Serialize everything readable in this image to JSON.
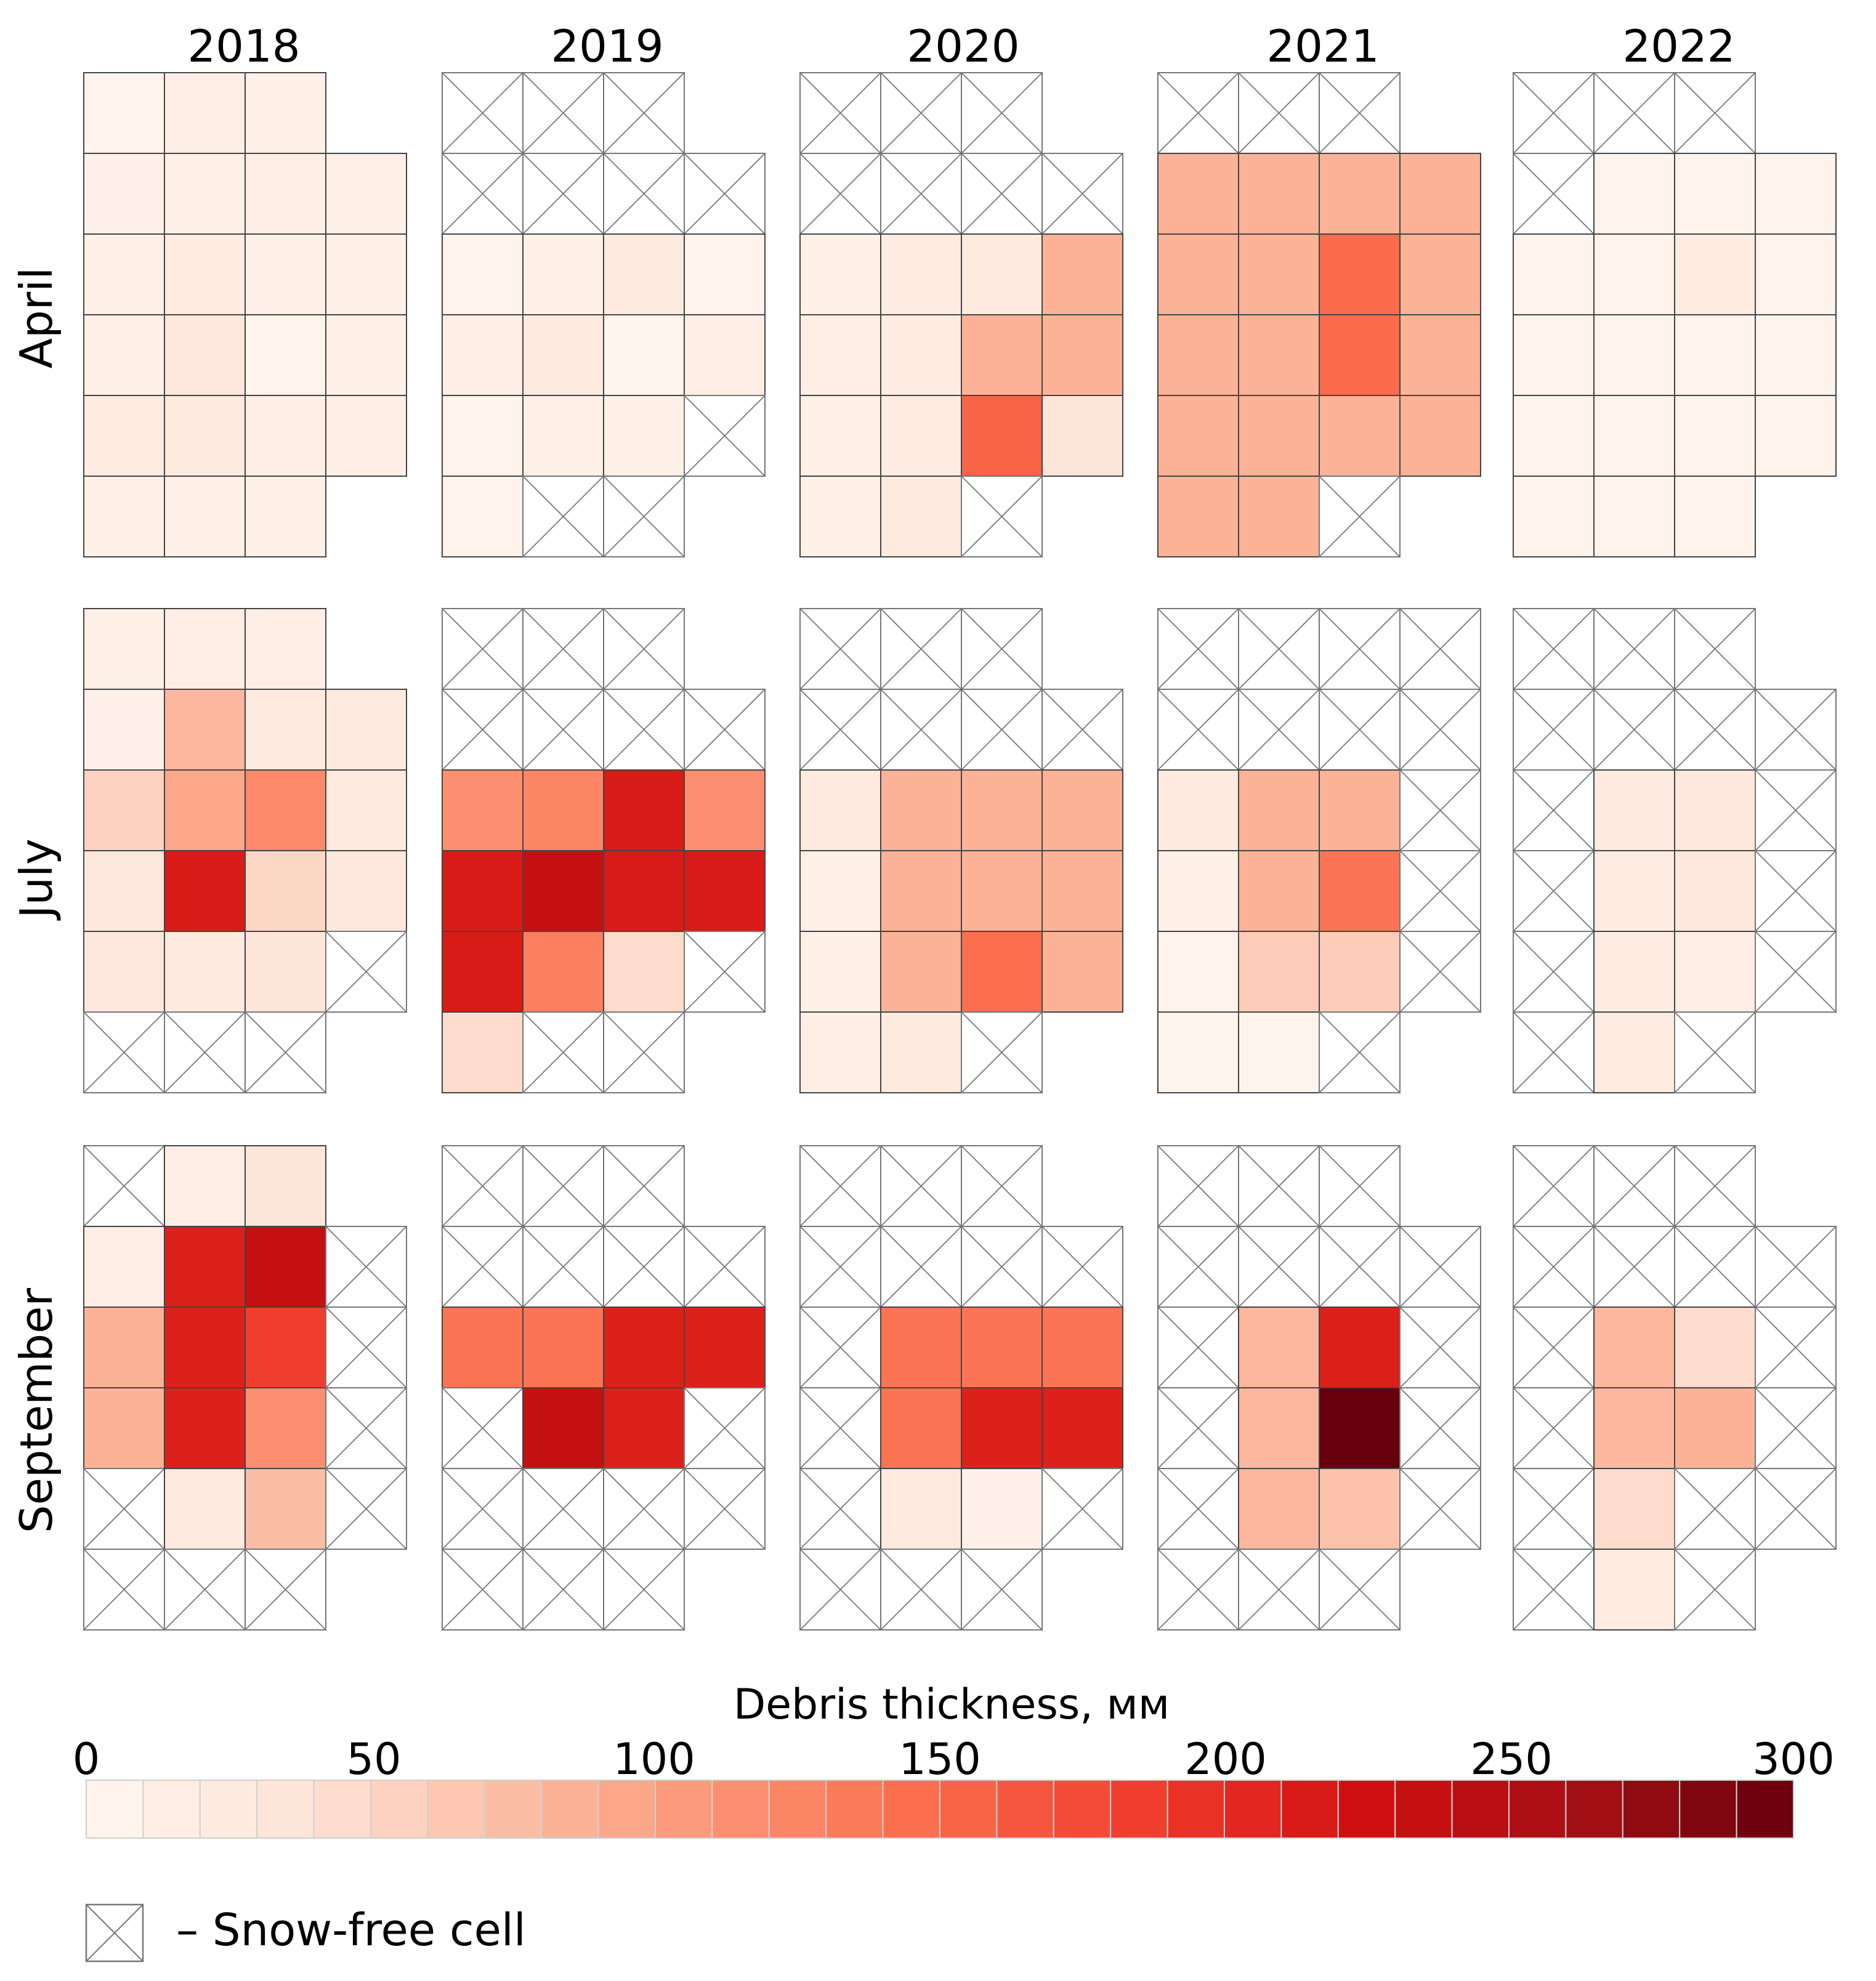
{
  "chart_data": {
    "type": "heatmap",
    "title": "",
    "years": [
      "2018",
      "2019",
      "2020",
      "2021",
      "2022"
    ],
    "months": [
      "April",
      "July",
      "September"
    ],
    "grid_size": {
      "rows": 6,
      "cols": 4
    },
    "cell_legend": {
      "null_meaning": "no cell",
      "-1_meaning": "Snow-free cell",
      "value_units": "mm"
    },
    "panels": {
      "April": {
        "2018": [
          [
            5,
            15,
            10,
            null
          ],
          [
            8,
            12,
            15,
            10
          ],
          [
            10,
            20,
            12,
            12
          ],
          [
            10,
            30,
            5,
            10
          ],
          [
            20,
            25,
            15,
            15
          ],
          [
            10,
            10,
            10,
            null
          ]
        ],
        "2019": [
          [
            -1,
            -1,
            -1,
            null
          ],
          [
            -1,
            -1,
            -1,
            -1
          ],
          [
            5,
            10,
            25,
            5
          ],
          [
            15,
            25,
            0,
            15
          ],
          [
            5,
            10,
            10,
            -1
          ],
          [
            5,
            -1,
            -1,
            null
          ]
        ],
        "2020": [
          [
            -1,
            -1,
            -1,
            null
          ],
          [
            -1,
            -1,
            -1,
            -1
          ],
          [
            10,
            20,
            25,
            85
          ],
          [
            15,
            20,
            85,
            85
          ],
          [
            10,
            20,
            155,
            35
          ],
          [
            10,
            25,
            -1,
            null
          ]
        ],
        "2021": [
          [
            -1,
            -1,
            -1,
            null
          ],
          [
            85,
            85,
            85,
            85
          ],
          [
            85,
            85,
            150,
            85
          ],
          [
            85,
            85,
            150,
            85
          ],
          [
            85,
            85,
            85,
            85
          ],
          [
            85,
            85,
            -1,
            null
          ]
        ],
        "2022": [
          [
            -1,
            -1,
            -1,
            null
          ],
          [
            -1,
            5,
            5,
            5
          ],
          [
            5,
            5,
            20,
            5
          ],
          [
            5,
            5,
            5,
            5
          ],
          [
            5,
            5,
            5,
            5
          ],
          [
            5,
            5,
            5,
            null
          ]
        ]
      },
      "July": {
        "2018": [
          [
            10,
            15,
            15,
            null
          ],
          [
            8,
            80,
            25,
            25
          ],
          [
            55,
            95,
            120,
            25
          ],
          [
            30,
            215,
            50,
            30
          ],
          [
            30,
            25,
            35,
            -1
          ],
          [
            -1,
            -1,
            -1,
            null
          ]
        ],
        "2019": [
          [
            -1,
            -1,
            -1,
            null
          ],
          [
            -1,
            -1,
            -1,
            -1
          ],
          [
            115,
            125,
            215,
            115
          ],
          [
            215,
            235,
            215,
            215
          ],
          [
            215,
            130,
            45,
            -1
          ],
          [
            45,
            -1,
            -1,
            null
          ]
        ],
        "2020": [
          [
            -1,
            -1,
            -1,
            null
          ],
          [
            -1,
            -1,
            -1,
            -1
          ],
          [
            25,
            85,
            85,
            85
          ],
          [
            10,
            85,
            85,
            85
          ],
          [
            10,
            85,
            145,
            85
          ],
          [
            15,
            25,
            -1,
            null
          ]
        ],
        "2021": [
          [
            -1,
            -1,
            -1,
            -1
          ],
          [
            -1,
            -1,
            -1,
            -1
          ],
          [
            25,
            85,
            85,
            -1
          ],
          [
            10,
            85,
            140,
            -1
          ],
          [
            5,
            60,
            60,
            -1
          ],
          [
            3,
            3,
            -1,
            null
          ]
        ],
        "2022": [
          [
            -1,
            -1,
            -1,
            null
          ],
          [
            -1,
            -1,
            -1,
            -1
          ],
          [
            -1,
            25,
            30,
            -1
          ],
          [
            -1,
            20,
            30,
            -1
          ],
          [
            -1,
            20,
            15,
            -1
          ],
          [
            -1,
            20,
            -1,
            null
          ]
        ]
      },
      "September": {
        "2018": [
          [
            -1,
            15,
            35,
            null
          ],
          [
            15,
            210,
            235,
            -1
          ],
          [
            85,
            210,
            185,
            -1
          ],
          [
            85,
            210,
            115,
            -1
          ],
          [
            -1,
            25,
            75,
            -1
          ],
          [
            -1,
            -1,
            -1,
            null
          ]
        ],
        "2019": [
          [
            -1,
            -1,
            -1,
            null
          ],
          [
            -1,
            -1,
            -1,
            -1
          ],
          [
            140,
            140,
            210,
            210
          ],
          [
            -1,
            235,
            210,
            -1
          ],
          [
            -1,
            -1,
            -1,
            -1
          ],
          [
            -1,
            -1,
            -1,
            null
          ]
        ],
        "2020": [
          [
            -1,
            -1,
            -1,
            null
          ],
          [
            -1,
            -1,
            -1,
            -1
          ],
          [
            -1,
            140,
            140,
            140
          ],
          [
            -1,
            140,
            210,
            210
          ],
          [
            -1,
            25,
            8,
            -1
          ],
          [
            -1,
            -1,
            -1,
            null
          ]
        ],
        "2021": [
          [
            -1,
            -1,
            -1,
            null
          ],
          [
            -1,
            -1,
            -1,
            -1
          ],
          [
            -1,
            80,
            210,
            -1
          ],
          [
            -1,
            80,
            300,
            -1
          ],
          [
            -1,
            80,
            70,
            -1
          ],
          [
            -1,
            -1,
            -1,
            null
          ]
        ],
        "2022": [
          [
            -1,
            -1,
            -1,
            null
          ],
          [
            -1,
            -1,
            -1,
            -1
          ],
          [
            -1,
            80,
            45,
            -1
          ],
          [
            -1,
            80,
            85,
            -1
          ],
          [
            -1,
            45,
            -1,
            -1
          ],
          [
            -1,
            20,
            -1,
            null
          ]
        ]
      }
    },
    "colorbar": {
      "label": "Debris thickness, мм",
      "min": 0,
      "max": 300,
      "steps": 30,
      "ticks": [
        "0",
        "50",
        "100",
        "150",
        "200",
        "250",
        "300"
      ]
    },
    "legend": {
      "snow_free_label": "– Snow-free cell"
    }
  },
  "colors": {
    "low": "#fff5ee",
    "scale": [
      "#fff5ee",
      "#fee4d7",
      "#fcbda5",
      "#fc9272",
      "#fb6a4a",
      "#ef3b2c",
      "#d01010",
      "#a50f15",
      "#67000d"
    ],
    "grid_line": "#444444",
    "snow_free_line": "#777777"
  }
}
